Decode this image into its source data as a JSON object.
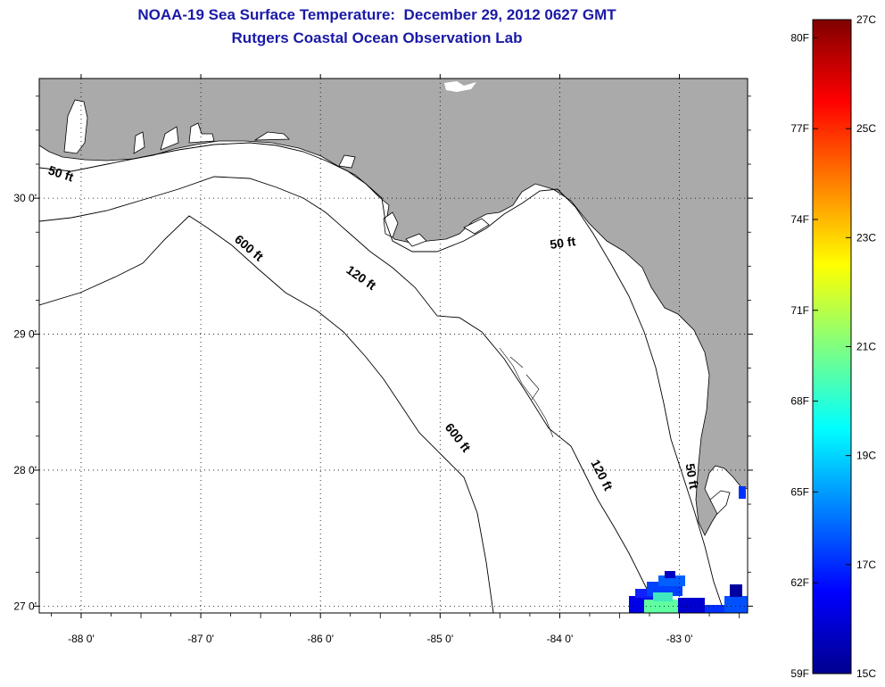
{
  "title": {
    "line1": "NOAA-19 Sea Surface Temperature:  December 29, 2012 0627 GMT",
    "line2": "Rutgers Coastal Ocean Observation Lab"
  },
  "map": {
    "lon_range": [
      -88.35,
      -82.43
    ],
    "lat_range": [
      26.95,
      30.88
    ],
    "lon_ticks": [
      {
        "value": -88,
        "label": "-88 0'"
      },
      {
        "value": -87,
        "label": "-87 0'"
      },
      {
        "value": -86,
        "label": "-86 0'"
      },
      {
        "value": -85,
        "label": "-85 0'"
      },
      {
        "value": -84,
        "label": "-84 0'"
      },
      {
        "value": -83,
        "label": "-83 0'"
      }
    ],
    "lat_ticks": [
      {
        "value": 30,
        "label": "30 0'"
      },
      {
        "value": 29,
        "label": "29 0'"
      },
      {
        "value": 28,
        "label": "28 0'"
      },
      {
        "value": 27,
        "label": "27 0'"
      }
    ],
    "contour_labels": [
      {
        "text": "50 ft",
        "lon": -88.18,
        "lat": 30.15,
        "angle": 18
      },
      {
        "text": "600 ft",
        "lon": -86.62,
        "lat": 29.61,
        "angle": 40
      },
      {
        "text": "120 ft",
        "lon": -85.68,
        "lat": 29.39,
        "angle": 35
      },
      {
        "text": "50 ft",
        "lon": -83.97,
        "lat": 29.64,
        "angle": -8
      },
      {
        "text": "600 ft",
        "lon": -84.88,
        "lat": 28.22,
        "angle": 52
      },
      {
        "text": "120 ft",
        "lon": -83.68,
        "lat": 27.95,
        "angle": 63
      },
      {
        "text": "50 ft",
        "lon": -82.93,
        "lat": 27.95,
        "angle": 80
      }
    ],
    "colors": {
      "land": "#aaaaaa",
      "water": "#ffffff",
      "frame": "#000000"
    }
  },
  "colorbar": {
    "stops": [
      "#00008f",
      "#0000ff",
      "#0080ff",
      "#00ffff",
      "#80ff80",
      "#ffff00",
      "#ff8000",
      "#ff0000",
      "#800000"
    ],
    "fahrenheit": [
      {
        "value": 80,
        "label": "80F"
      },
      {
        "value": 77,
        "label": "77F"
      },
      {
        "value": 74,
        "label": "74F"
      },
      {
        "value": 71,
        "label": "71F"
      },
      {
        "value": 68,
        "label": "68F"
      },
      {
        "value": 65,
        "label": "65F"
      },
      {
        "value": 62,
        "label": "62F"
      },
      {
        "value": 59,
        "label": "59F"
      }
    ],
    "celsius": [
      {
        "value": 27,
        "label": "27C"
      },
      {
        "value": 25,
        "label": "25C"
      },
      {
        "value": 23,
        "label": "23C"
      },
      {
        "value": 21,
        "label": "21C"
      },
      {
        "value": 19,
        "label": "19C"
      },
      {
        "value": 17,
        "label": "17C"
      },
      {
        "value": 15,
        "label": "15C"
      }
    ],
    "range_c": [
      15,
      27
    ]
  }
}
